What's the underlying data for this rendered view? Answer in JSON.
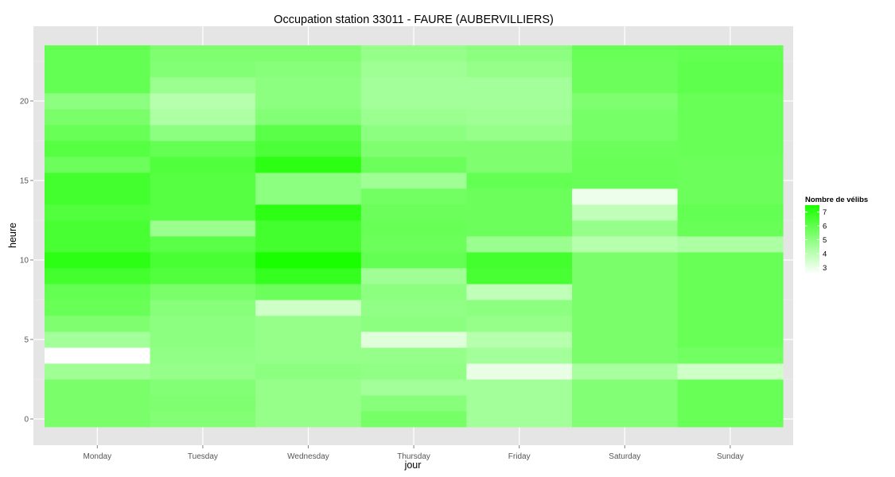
{
  "chart_data": {
    "type": "heatmap",
    "title": "Occupation station 33011 - FAURE (AUBERVILLIERS)",
    "xlabel": "jour",
    "ylabel": "heure",
    "categories": [
      "Monday",
      "Tuesday",
      "Wednesday",
      "Thursday",
      "Friday",
      "Saturday",
      "Sunday"
    ],
    "y_ticks": [
      0,
      5,
      10,
      15,
      20
    ],
    "ylim": [
      -0.5,
      23.5
    ],
    "grid": true,
    "legend": {
      "title": "Nombre de vélibs",
      "ticks": [
        3,
        4,
        5,
        6,
        7
      ],
      "range": [
        2.5,
        7.5
      ],
      "low_color": "#ffffff",
      "high_color": "#1aff00",
      "placement": "right"
    },
    "hours": [
      0,
      1,
      2,
      3,
      4,
      5,
      6,
      7,
      8,
      9,
      10,
      11,
      12,
      13,
      14,
      15,
      16,
      17,
      18,
      19,
      20,
      21,
      22,
      23
    ],
    "values": [
      [
        5.4,
        5.2,
        4.8,
        5.5,
        4.5,
        5.2,
        5.8
      ],
      [
        5.4,
        5.3,
        4.8,
        5.1,
        4.5,
        5.2,
        5.8
      ],
      [
        5.4,
        5.2,
        4.8,
        4.5,
        4.5,
        5.2,
        5.8
      ],
      [
        4.6,
        4.8,
        5.0,
        4.9,
        3.0,
        4.4,
        3.6
      ],
      [
        2.5,
        4.9,
        4.8,
        4.8,
        4.5,
        5.4,
        5.6
      ],
      [
        4.5,
        5.0,
        4.8,
        3.2,
        4.1,
        5.4,
        5.8
      ],
      [
        5.3,
        5.0,
        4.8,
        5.0,
        4.8,
        5.4,
        5.8
      ],
      [
        5.8,
        5.1,
        3.6,
        4.9,
        5.0,
        5.4,
        5.8
      ],
      [
        5.9,
        5.4,
        5.7,
        5.0,
        3.9,
        5.4,
        5.8
      ],
      [
        6.6,
        6.3,
        6.9,
        4.6,
        6.5,
        5.4,
        5.8
      ],
      [
        7.1,
        6.5,
        7.5,
        5.9,
        6.6,
        5.4,
        5.8
      ],
      [
        6.5,
        6.1,
        6.6,
        5.7,
        4.7,
        4.1,
        4.3
      ],
      [
        6.5,
        4.7,
        6.6,
        5.8,
        5.7,
        4.8,
        5.8
      ],
      [
        6.3,
        6.2,
        7.1,
        5.7,
        5.7,
        3.9,
        5.9
      ],
      [
        6.6,
        6.2,
        5.0,
        5.6,
        5.7,
        2.9,
        5.7
      ],
      [
        6.6,
        6.2,
        5.0,
        4.6,
        5.9,
        5.8,
        5.7
      ],
      [
        5.7,
        6.3,
        7.1,
        5.7,
        5.3,
        5.8,
        5.7
      ],
      [
        6.2,
        5.9,
        6.4,
        5.3,
        5.3,
        5.7,
        5.8
      ],
      [
        5.8,
        5.0,
        6.1,
        5.0,
        4.8,
        5.5,
        5.8
      ],
      [
        5.4,
        4.3,
        5.2,
        4.7,
        4.6,
        5.5,
        5.8
      ],
      [
        5.0,
        4.1,
        5.0,
        4.5,
        4.5,
        5.3,
        5.8
      ],
      [
        5.9,
        4.7,
        5.0,
        4.5,
        4.5,
        5.7,
        6.0
      ],
      [
        5.9,
        5.2,
        5.1,
        4.6,
        4.8,
        5.7,
        6.0
      ],
      [
        5.9,
        5.3,
        5.3,
        4.8,
        5.0,
        5.8,
        5.9
      ]
    ]
  }
}
